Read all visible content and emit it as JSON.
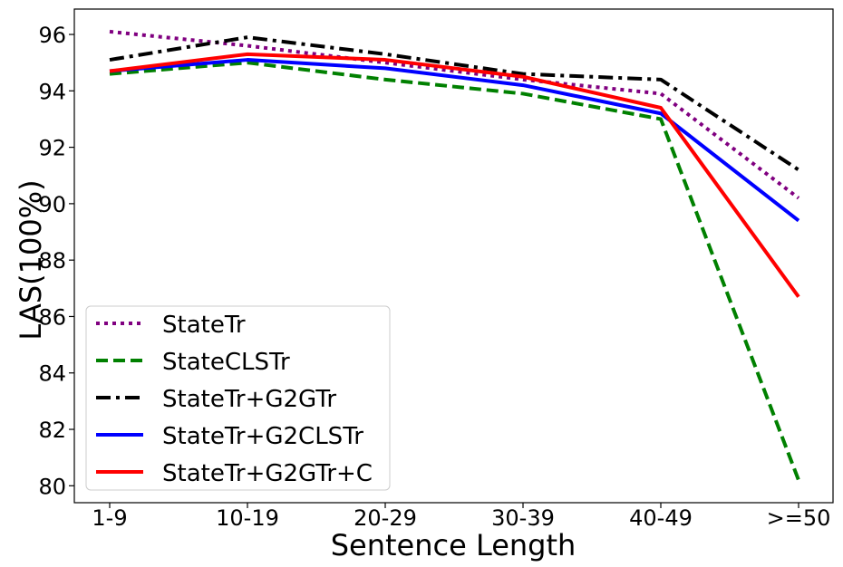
{
  "chart_data": {
    "type": "line",
    "title": "",
    "xlabel": "Sentence Length",
    "ylabel": "LAS(100%)",
    "categories": [
      "1-9",
      "10-19",
      "20-29",
      "30-39",
      "40-49",
      ">=50"
    ],
    "ylim": [
      79.4,
      96.9
    ],
    "yticks": [
      80,
      82,
      84,
      86,
      88,
      90,
      92,
      94,
      96
    ],
    "grid": false,
    "legend_position": "lower-left",
    "series": [
      {
        "name": "StateTr",
        "color": "#800080",
        "style": "dotted",
        "values": [
          96.1,
          95.6,
          95.0,
          94.4,
          93.9,
          90.2
        ]
      },
      {
        "name": "StateCLSTr",
        "color": "#008000",
        "style": "dashed",
        "values": [
          94.6,
          95.0,
          94.4,
          93.9,
          93.0,
          80.2
        ]
      },
      {
        "name": "StateTr+G2GTr",
        "color": "#000000",
        "style": "dashdot",
        "values": [
          95.1,
          95.9,
          95.3,
          94.6,
          94.4,
          91.2
        ]
      },
      {
        "name": "StateTr+G2CLSTr",
        "color": "#0000ff",
        "style": "solid",
        "values": [
          94.7,
          95.1,
          94.8,
          94.2,
          93.2,
          89.4
        ]
      },
      {
        "name": "StateTr+G2GTr+C",
        "color": "#ff0000",
        "style": "solid",
        "values": [
          94.7,
          95.3,
          95.1,
          94.5,
          93.4,
          86.7
        ]
      }
    ]
  }
}
